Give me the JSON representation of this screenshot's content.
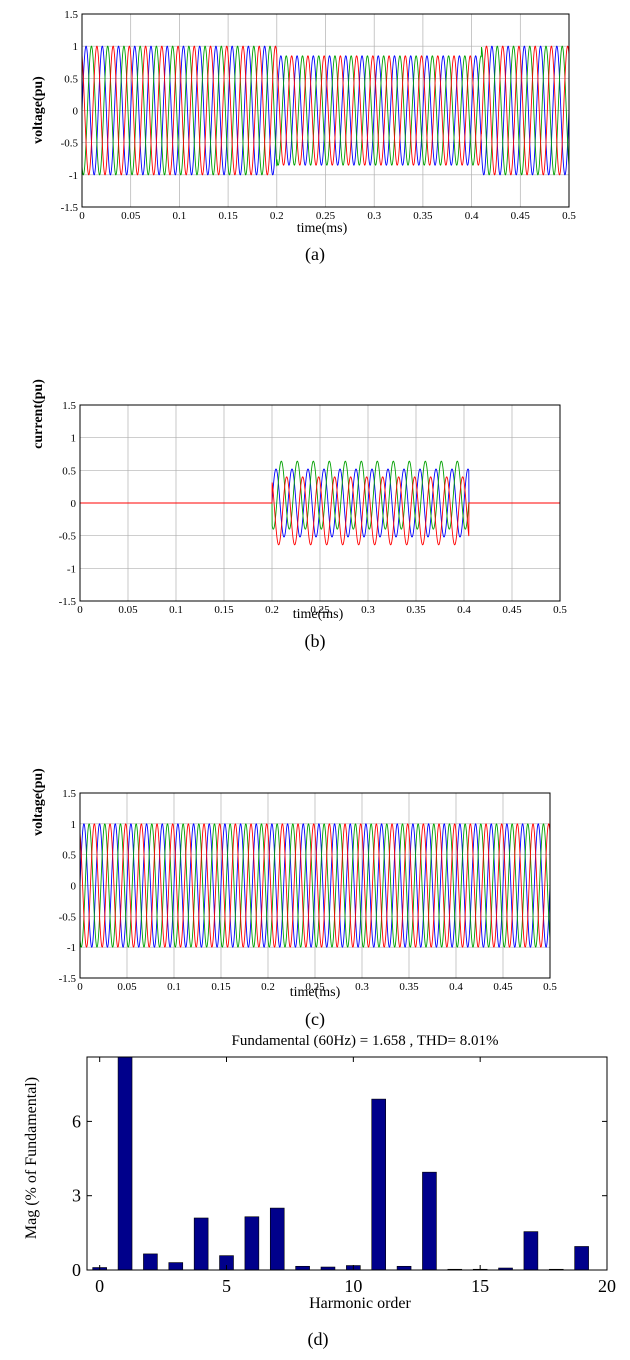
{
  "captions": [
    "(a)",
    "(b)",
    "(c)",
    "(d)"
  ],
  "colors": {
    "phase_a": "#0000ff",
    "phase_b": "#00a000",
    "phase_c": "#ff0000",
    "bar": "#00008b"
  },
  "chart_data": [
    {
      "type": "line",
      "xlabel": "time(ms)",
      "ylabel": "voltage(pu)",
      "xlim": [
        0,
        0.5
      ],
      "ylim": [
        -1.5,
        1.5
      ],
      "xticks": [
        "0",
        "0.05",
        "0.1",
        "0.15",
        "0.2",
        "0.25",
        "0.3",
        "0.35",
        "0.4",
        "0.45",
        "0.5"
      ],
      "yticks": [
        "-1.5",
        "-1",
        "-0.5",
        "0",
        "0.5",
        "1",
        "1.5"
      ],
      "grid": true,
      "cycles": 30,
      "series": [
        {
          "color": "#0000ff",
          "phase_deg": 0
        },
        {
          "color": "#00a000",
          "phase_deg": -120
        },
        {
          "color": "#ff0000",
          "phase_deg": 120
        }
      ],
      "segments": [
        {
          "t0": 0.0,
          "t1": 0.2,
          "amplitude": 1.0
        },
        {
          "t0": 0.2,
          "t1": 0.41,
          "amplitude": 0.85
        },
        {
          "t0": 0.41,
          "t1": 0.5,
          "amplitude": 1.0
        }
      ]
    },
    {
      "type": "line",
      "xlabel": "time(ms)",
      "ylabel": "current(pu)",
      "xlim": [
        0,
        0.5
      ],
      "ylim": [
        -1.5,
        1.5
      ],
      "xticks": [
        "0",
        "0.05",
        "0.1",
        "0.15",
        "0.2",
        "0.25",
        "0.3",
        "0.35",
        "0.4",
        "0.45",
        "0.5"
      ],
      "yticks": [
        "-1.5",
        "-1",
        "-0.5",
        "0",
        "0.5",
        "1",
        "1.5"
      ],
      "grid": true,
      "cycles": 30,
      "series": [
        {
          "color": "#0000ff",
          "phase_deg": 0
        },
        {
          "color": "#00a000",
          "phase_deg": -120
        },
        {
          "color": "#ff0000",
          "phase_deg": 120
        }
      ],
      "segments": [
        {
          "t0": 0.0,
          "t1": 0.2,
          "amplitude": 0.0
        },
        {
          "t0": 0.2,
          "t1": 0.405,
          "amplitude": 0.52,
          "offset": -0.1
        },
        {
          "t0": 0.405,
          "t1": 0.5,
          "amplitude": 0.0
        }
      ]
    },
    {
      "type": "line",
      "xlabel": "time(ms)",
      "ylabel": "voltage(pu)",
      "xlim": [
        0,
        0.5
      ],
      "ylim": [
        -1.5,
        1.5
      ],
      "xticks": [
        "0",
        "0.05",
        "0.1",
        "0.15",
        "0.2",
        "0.25",
        "0.3",
        "0.35",
        "0.4",
        "0.45",
        "0.5"
      ],
      "yticks": [
        "-1.5",
        "-1",
        "-0.5",
        "0",
        "0.5",
        "1",
        "1.5"
      ],
      "grid": true,
      "cycles": 30,
      "series": [
        {
          "color": "#0000ff",
          "phase_deg": 0
        },
        {
          "color": "#00a000",
          "phase_deg": -120
        },
        {
          "color": "#ff0000",
          "phase_deg": 120
        }
      ],
      "segments": [
        {
          "t0": 0.0,
          "t1": 0.5,
          "amplitude": 1.0
        }
      ]
    },
    {
      "type": "bar",
      "title": "Fundamental (60Hz) = 1.658 , THD= 8.01%",
      "xlabel": "Harmonic order",
      "ylabel": "Mag (% of Fundamental)",
      "xlim": [
        -0.5,
        20
      ],
      "ylim": [
        0,
        8.6
      ],
      "xticks": [
        "0",
        "5",
        "10",
        "15",
        "20"
      ],
      "yticks": [
        "0",
        "3",
        "6"
      ],
      "categories": [
        0,
        1,
        2,
        3,
        4,
        5,
        6,
        7,
        8,
        9,
        10,
        11,
        12,
        13,
        14,
        15,
        16,
        17,
        18,
        19
      ],
      "values": [
        0.1,
        8.6,
        0.65,
        0.3,
        2.1,
        0.58,
        2.15,
        2.5,
        0.15,
        0.12,
        0.18,
        6.9,
        0.15,
        3.95,
        0.03,
        0.03,
        0.08,
        1.55,
        0.03,
        0.95
      ]
    }
  ]
}
